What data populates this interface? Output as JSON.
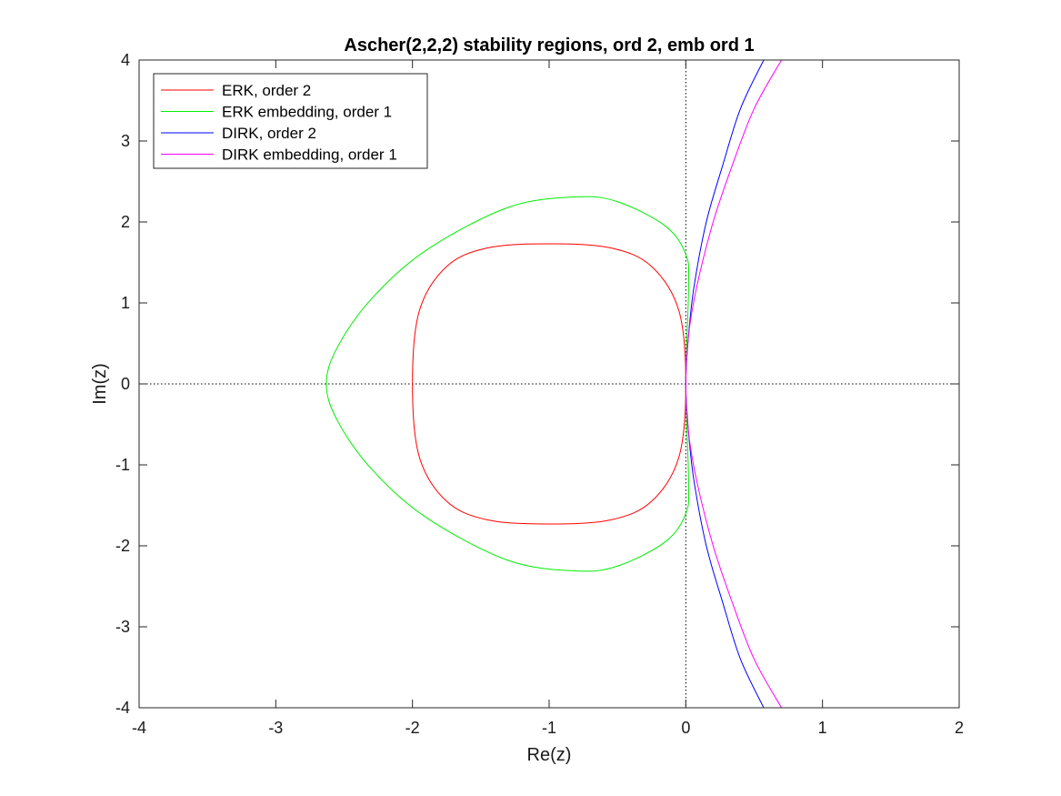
{
  "chart_data": {
    "type": "line",
    "title": "Ascher(2,2,2) stability regions, ord 2, emb ord 1",
    "xlabel": "Re(z)",
    "ylabel": "Im(z)",
    "xlim": [
      -4,
      2
    ],
    "ylim": [
      -4,
      4
    ],
    "xticks": [
      -4,
      -3,
      -2,
      -1,
      0,
      1,
      2
    ],
    "yticks": [
      -4,
      -3,
      -2,
      -1,
      0,
      1,
      2,
      3,
      4
    ],
    "xtick_labels": [
      "-4",
      "-3",
      "-2",
      "-1",
      "0",
      "1",
      "2"
    ],
    "ytick_labels": [
      "-4",
      "-3",
      "-2",
      "-1",
      "0",
      "1",
      "2",
      "3",
      "4"
    ],
    "grid": false,
    "reference_lines": {
      "x0": 0,
      "y0": 0,
      "style": "dotted"
    },
    "legend_position": "top-left",
    "series": [
      {
        "name": "ERK, order 2",
        "color": "#ff0000",
        "closed": true,
        "x": [
          0,
          -0.05,
          -0.25,
          -0.55,
          -1.0,
          -1.45,
          -1.75,
          -1.95,
          -2.0,
          -1.95,
          -1.75,
          -1.45,
          -1.0,
          -0.55,
          -0.25,
          -0.05,
          0
        ],
        "y": [
          0,
          0.9,
          1.45,
          1.68,
          1.73,
          1.68,
          1.45,
          0.9,
          0,
          -0.9,
          -1.45,
          -1.68,
          -1.73,
          -1.68,
          -1.45,
          -0.9,
          0
        ]
      },
      {
        "name": "ERK embedding, order 1",
        "color": "#00ee00",
        "closed": true,
        "x": [
          0,
          0.02,
          0,
          -0.15,
          -0.5,
          -0.8,
          -1.3,
          -1.9,
          -2.3,
          -2.55,
          -2.63,
          -2.55,
          -2.3,
          -1.9,
          -1.3,
          -0.8,
          -0.5,
          -0.15,
          0,
          0.02,
          0
        ],
        "y": [
          0,
          1.2,
          1.6,
          1.95,
          2.25,
          2.31,
          2.18,
          1.65,
          1.05,
          0.45,
          0,
          -0.45,
          -1.05,
          -1.65,
          -2.18,
          -2.31,
          -2.25,
          -1.95,
          -1.6,
          -1.2,
          0
        ]
      },
      {
        "name": "DIRK, order 2",
        "color": "#0000ff",
        "closed": false,
        "x": [
          0.57,
          0.4,
          0.27,
          0.15,
          0.06,
          0.02,
          0,
          0.02,
          0.06,
          0.15,
          0.27,
          0.4,
          0.57
        ],
        "y": [
          4,
          3.4,
          2.7,
          2.0,
          1.2,
          0.6,
          0,
          -0.6,
          -1.2,
          -2.0,
          -2.7,
          -3.4,
          -4
        ]
      },
      {
        "name": "DIRK embedding, order 1",
        "color": "#ff00ff",
        "closed": false,
        "x": [
          0.7,
          0.5,
          0.34,
          0.2,
          0.08,
          0.02,
          0,
          0.02,
          0.08,
          0.2,
          0.34,
          0.5,
          0.7
        ],
        "y": [
          4,
          3.4,
          2.7,
          2.0,
          1.2,
          0.6,
          0,
          -0.6,
          -1.2,
          -2.0,
          -2.7,
          -3.4,
          -4
        ]
      }
    ]
  }
}
